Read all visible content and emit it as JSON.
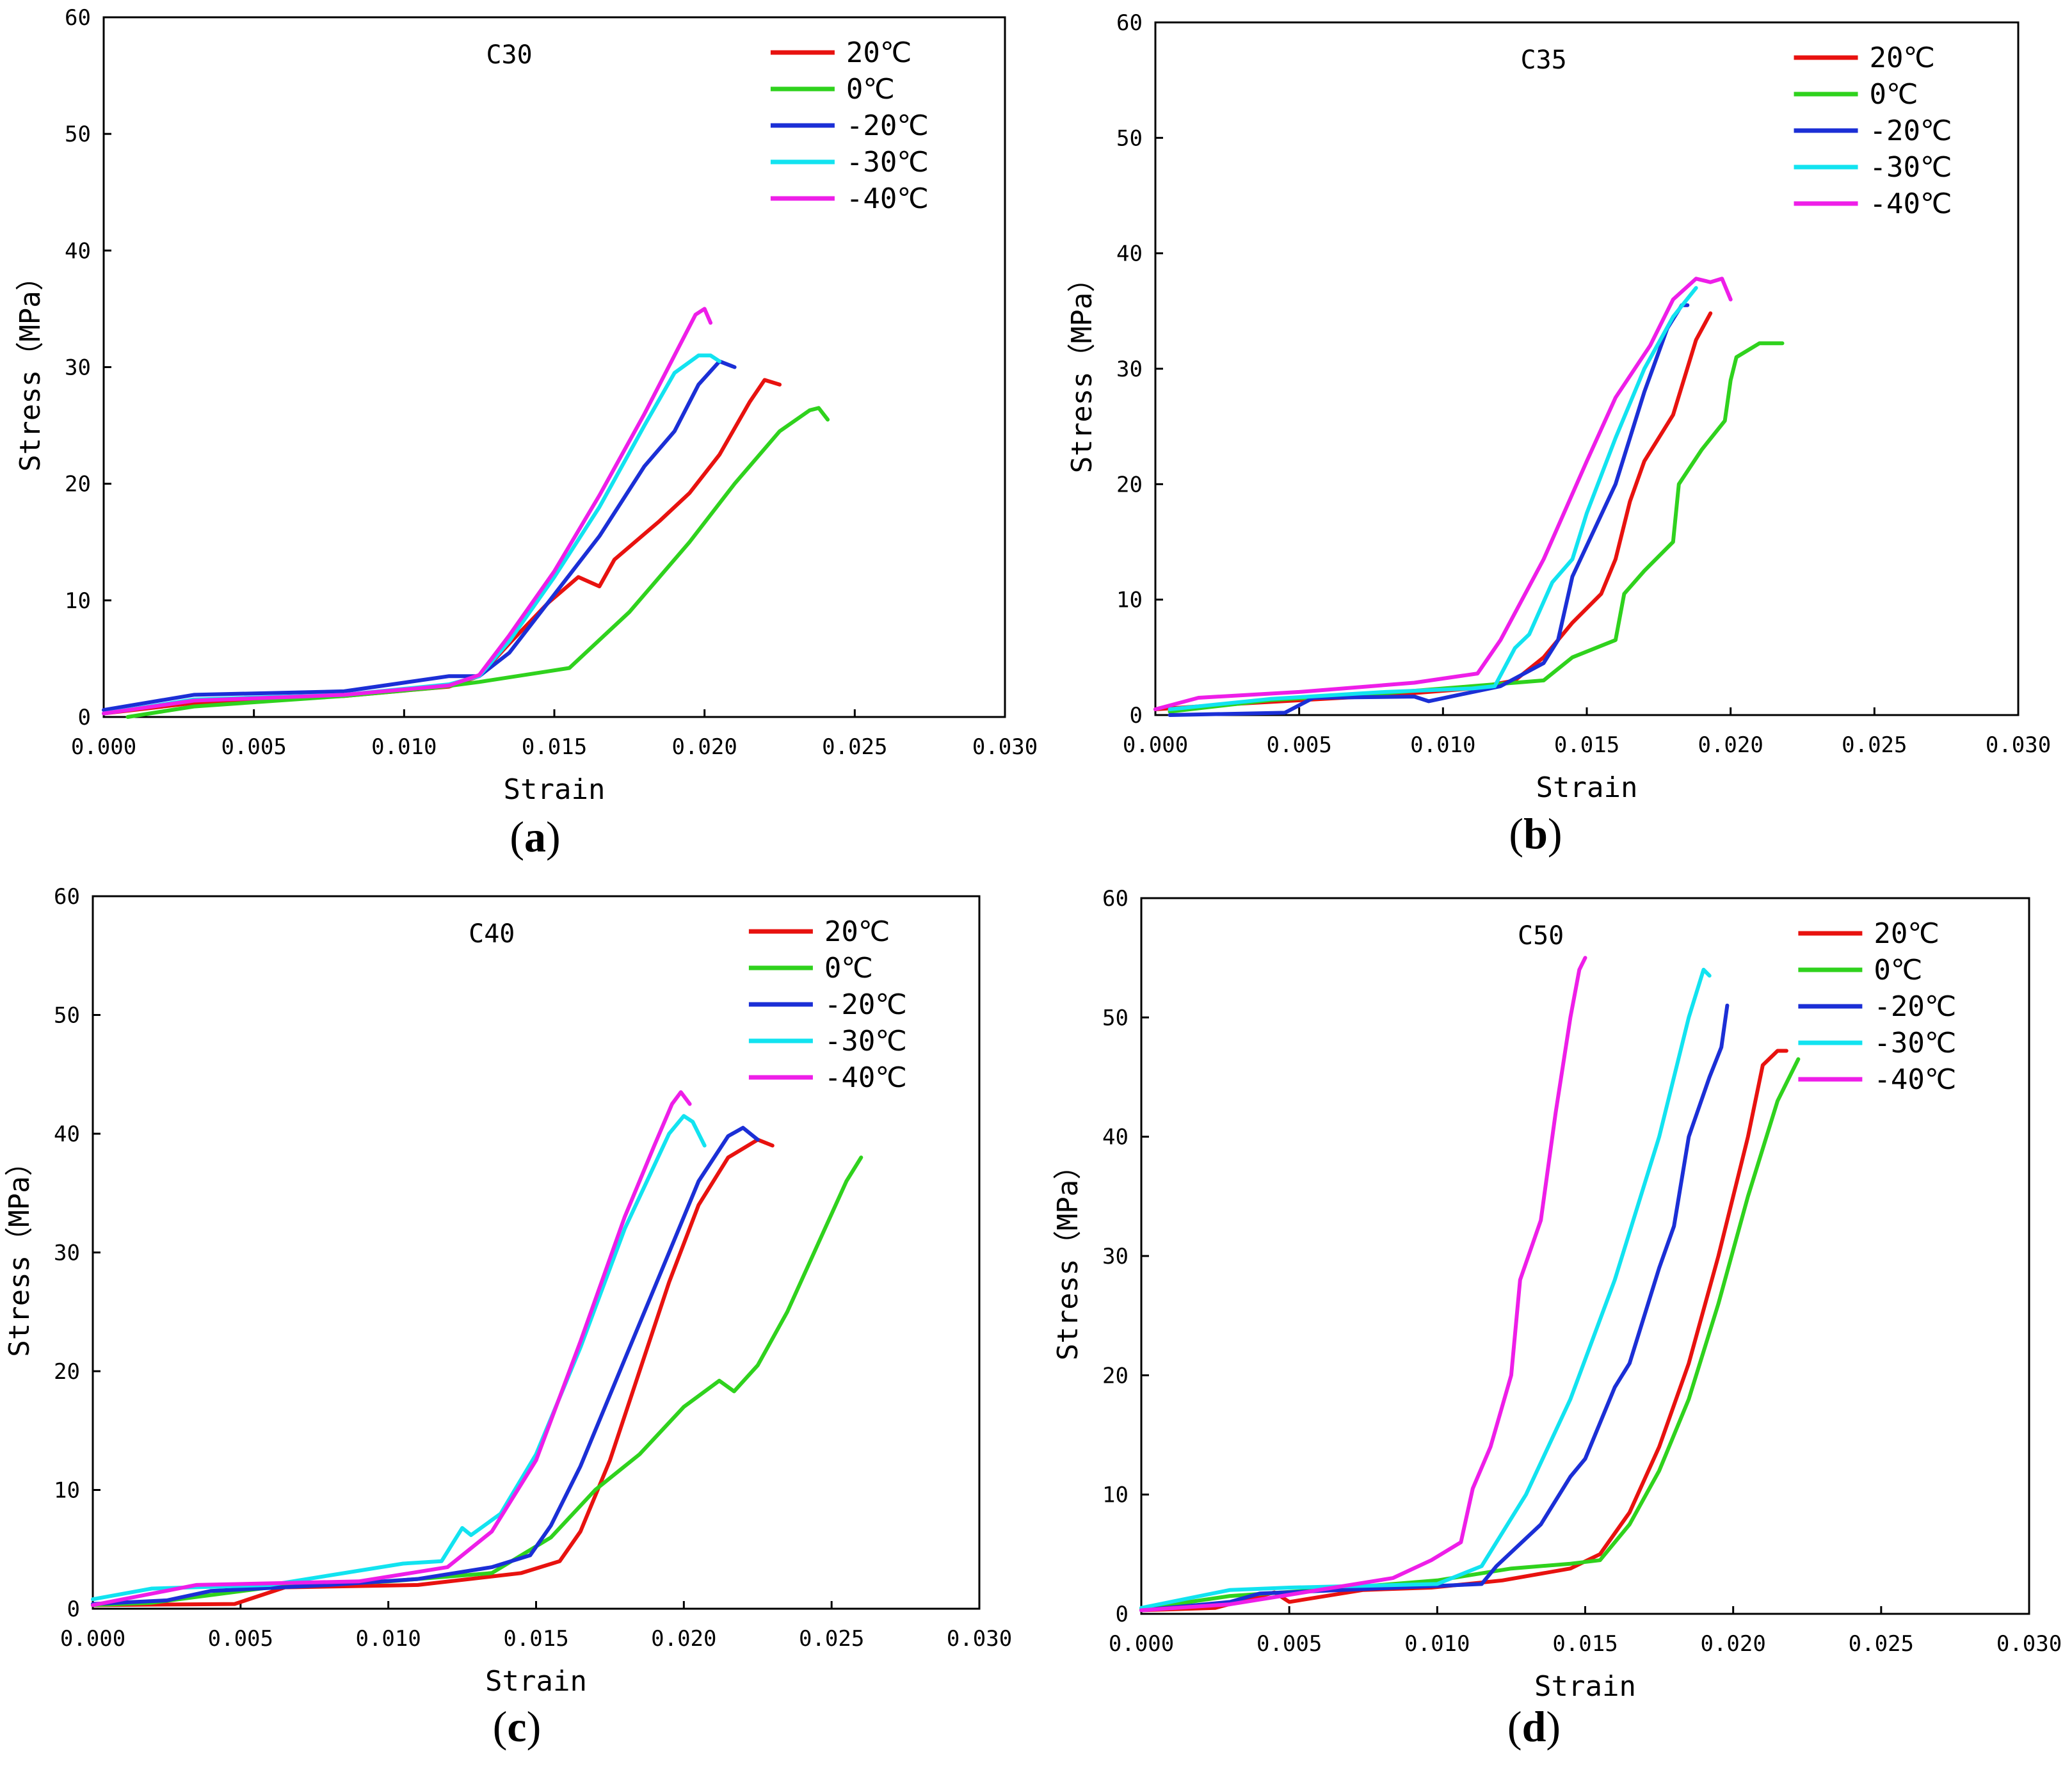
{
  "figure": {
    "colors": {
      "t20": "#e8120f",
      "t0": "#2fd21d",
      "tm20": "#1b2fd6",
      "tm30": "#12e3f0",
      "tm40": "#ee1ee8"
    }
  },
  "chart_data": [
    {
      "type": "line",
      "panel": "a",
      "caption_letter": "a",
      "title": "C30",
      "xlabel": "Strain",
      "ylabel": "Stress（MPa）",
      "xlim": [
        0,
        0.03
      ],
      "ylim": [
        0,
        60
      ],
      "xticks": [
        "0.000",
        "0.005",
        "0.010",
        "0.015",
        "0.020",
        "0.025",
        "0.030"
      ],
      "yticks": [
        "0",
        "10",
        "20",
        "30",
        "40",
        "50",
        "60"
      ],
      "legend_position": "top-right",
      "series": [
        {
          "name": "20℃",
          "color": "#e8120f",
          "x": [
            0,
            0.003,
            0.008,
            0.0115,
            0.0125,
            0.0135,
            0.0148,
            0.0158,
            0.0165,
            0.017,
            0.0185,
            0.0195,
            0.0205,
            0.0215,
            0.022,
            0.0225
          ],
          "y": [
            0.3,
            1.2,
            1.8,
            2.6,
            3.5,
            6.3,
            9.8,
            12.0,
            11.2,
            13.5,
            16.8,
            19.2,
            22.5,
            27.0,
            28.9,
            28.5
          ]
        },
        {
          "name": "0℃",
          "color": "#2fd21d",
          "x": [
            0.0008,
            0.003,
            0.008,
            0.011,
            0.0125,
            0.0145,
            0.0155,
            0.0175,
            0.0195,
            0.021,
            0.0225,
            0.0235,
            0.0238,
            0.0241
          ],
          "y": [
            0.0,
            0.9,
            1.8,
            2.5,
            3.0,
            3.8,
            4.2,
            9.0,
            15.0,
            20.0,
            24.5,
            26.3,
            26.5,
            25.5
          ]
        },
        {
          "name": "-20℃",
          "color": "#1b2fd6",
          "x": [
            0,
            0.003,
            0.008,
            0.0115,
            0.0125,
            0.0135,
            0.015,
            0.0165,
            0.018,
            0.019,
            0.0198,
            0.0205,
            0.021
          ],
          "y": [
            0.6,
            1.9,
            2.2,
            3.5,
            3.5,
            5.5,
            10.5,
            15.5,
            21.5,
            24.5,
            28.5,
            30.5,
            30.0
          ]
        },
        {
          "name": "-30℃",
          "color": "#12e3f0",
          "x": [
            0,
            0.003,
            0.008,
            0.0115,
            0.0125,
            0.0135,
            0.015,
            0.0165,
            0.018,
            0.019,
            0.0198,
            0.0202,
            0.0205
          ],
          "y": [
            0.3,
            1.5,
            1.9,
            2.8,
            3.5,
            6.5,
            12.0,
            18.0,
            25.0,
            29.5,
            31.0,
            31.0,
            30.5
          ]
        },
        {
          "name": "-40℃",
          "color": "#ee1ee8",
          "x": [
            0,
            0.003,
            0.008,
            0.0115,
            0.0125,
            0.0135,
            0.015,
            0.0165,
            0.018,
            0.019,
            0.0197,
            0.02,
            0.0202
          ],
          "y": [
            0.3,
            1.4,
            1.9,
            2.7,
            3.6,
            7.0,
            12.5,
            19.0,
            26.0,
            31.0,
            34.5,
            35.0,
            33.8
          ]
        }
      ]
    },
    {
      "type": "line",
      "panel": "b",
      "caption_letter": "b",
      "title": "C35",
      "xlabel": "Strain",
      "ylabel": "Stress（MPa）",
      "xlim": [
        0,
        0.03
      ],
      "ylim": [
        0,
        60
      ],
      "xticks": [
        "0.000",
        "0.005",
        "0.010",
        "0.015",
        "0.020",
        "0.025",
        "0.030"
      ],
      "yticks": [
        "0",
        "10",
        "20",
        "30",
        "40",
        "50",
        "60"
      ],
      "legend_position": "top-right",
      "series": [
        {
          "name": "20℃",
          "color": "#e8120f",
          "x": [
            0,
            0.003,
            0.008,
            0.011,
            0.0125,
            0.0135,
            0.0145,
            0.0155,
            0.016,
            0.0165,
            0.017,
            0.018,
            0.0188,
            0.0193
          ],
          "y": [
            0.5,
            1.0,
            1.7,
            2.3,
            3.0,
            5.0,
            8.0,
            10.5,
            13.5,
            18.5,
            22.0,
            26.0,
            32.5,
            34.8
          ]
        },
        {
          "name": "0℃",
          "color": "#2fd21d",
          "x": [
            0.0005,
            0.004,
            0.008,
            0.011,
            0.0135,
            0.0145,
            0.016,
            0.0163,
            0.017,
            0.018,
            0.0182,
            0.019,
            0.0198,
            0.02,
            0.0202,
            0.021,
            0.0218
          ],
          "y": [
            0.3,
            1.3,
            1.9,
            2.5,
            3.0,
            5.0,
            6.5,
            10.5,
            12.5,
            15.0,
            20.0,
            23.0,
            25.5,
            29.0,
            31.0,
            32.2,
            32.2
          ]
        },
        {
          "name": "-20℃",
          "color": "#1b2fd6",
          "x": [
            0.0005,
            0.0045,
            0.0055,
            0.009,
            0.0095,
            0.012,
            0.0135,
            0.014,
            0.0145,
            0.016,
            0.017,
            0.0178,
            0.0183,
            0.0185
          ],
          "y": [
            0.0,
            0.2,
            1.5,
            1.6,
            1.2,
            2.5,
            4.5,
            6.5,
            12.0,
            20.0,
            28.0,
            33.5,
            35.5,
            35.5
          ]
        },
        {
          "name": "-30℃",
          "color": "#12e3f0",
          "x": [
            0.0005,
            0.004,
            0.008,
            0.011,
            0.0118,
            0.0125,
            0.013,
            0.0138,
            0.0145,
            0.015,
            0.016,
            0.017,
            0.018,
            0.0188
          ],
          "y": [
            0.5,
            1.4,
            2.0,
            2.3,
            2.5,
            5.8,
            7.0,
            11.5,
            13.5,
            17.5,
            24.0,
            30.0,
            34.5,
            37.0
          ]
        },
        {
          "name": "-40℃",
          "color": "#ee1ee8",
          "x": [
            0,
            0.0015,
            0.005,
            0.009,
            0.0112,
            0.012,
            0.0135,
            0.015,
            0.016,
            0.0172,
            0.018,
            0.0188,
            0.0193,
            0.0197,
            0.02
          ],
          "y": [
            0.5,
            1.5,
            2.0,
            2.8,
            3.6,
            6.5,
            13.5,
            22.0,
            27.5,
            32.0,
            36.0,
            37.8,
            37.5,
            37.8,
            36.0
          ]
        }
      ]
    },
    {
      "type": "line",
      "panel": "c",
      "caption_letter": "c",
      "title": "C40",
      "xlabel": "Strain",
      "ylabel": "Stress（MPa）",
      "xlim": [
        0,
        0.03
      ],
      "ylim": [
        0,
        60
      ],
      "xticks": [
        "0.000",
        "0.005",
        "0.010",
        "0.015",
        "0.020",
        "0.025",
        "0.030"
      ],
      "yticks": [
        "0",
        "10",
        "20",
        "30",
        "40",
        "50",
        "60"
      ],
      "legend_position": "top-right",
      "series": [
        {
          "name": "20℃",
          "color": "#e8120f",
          "x": [
            0,
            0.0048,
            0.0065,
            0.011,
            0.0145,
            0.0158,
            0.0165,
            0.0175,
            0.0185,
            0.0195,
            0.0205,
            0.0215,
            0.0225,
            0.023
          ],
          "y": [
            0.3,
            0.4,
            1.8,
            2.0,
            3.0,
            4.0,
            6.5,
            12.5,
            20.0,
            27.5,
            34.0,
            38.0,
            39.5,
            39.0
          ]
        },
        {
          "name": "0℃",
          "color": "#2fd21d",
          "x": [
            0,
            0.002,
            0.006,
            0.01,
            0.0135,
            0.0155,
            0.017,
            0.0185,
            0.02,
            0.0212,
            0.0217,
            0.0225,
            0.0235,
            0.0245,
            0.0255,
            0.026
          ],
          "y": [
            0.3,
            0.5,
            1.8,
            2.3,
            3.0,
            6.0,
            10.0,
            13.0,
            17.0,
            19.2,
            18.3,
            20.5,
            25.0,
            30.5,
            36.0,
            38.0
          ]
        },
        {
          "name": "-20℃",
          "color": "#1b2fd6",
          "x": [
            0,
            0.0025,
            0.004,
            0.008,
            0.011,
            0.0135,
            0.0148,
            0.0155,
            0.0165,
            0.018,
            0.0195,
            0.0205,
            0.0215,
            0.022,
            0.0225
          ],
          "y": [
            0.4,
            0.7,
            1.5,
            2.0,
            2.5,
            3.5,
            4.5,
            7.0,
            12.0,
            21.0,
            30.0,
            36.0,
            39.8,
            40.5,
            39.5
          ]
        },
        {
          "name": "-30℃",
          "color": "#12e3f0",
          "x": [
            0,
            0.002,
            0.006,
            0.0105,
            0.0118,
            0.0125,
            0.0128,
            0.0138,
            0.015,
            0.0165,
            0.018,
            0.0195,
            0.02,
            0.0203,
            0.0207
          ],
          "y": [
            0.8,
            1.7,
            2.0,
            3.8,
            4.0,
            6.8,
            6.2,
            8.0,
            13.0,
            22.0,
            32.0,
            40.0,
            41.5,
            41.0,
            39.0
          ]
        },
        {
          "name": "-40℃",
          "color": "#ee1ee8",
          "x": [
            0,
            0.0035,
            0.009,
            0.012,
            0.0135,
            0.015,
            0.0165,
            0.018,
            0.019,
            0.0196,
            0.0199,
            0.0202
          ],
          "y": [
            0.3,
            2.0,
            2.3,
            3.5,
            6.5,
            12.5,
            22.5,
            33.0,
            39.0,
            42.5,
            43.5,
            42.5
          ]
        }
      ]
    },
    {
      "type": "line",
      "panel": "d",
      "caption_letter": "d",
      "title": "C50",
      "xlabel": "Strain",
      "ylabel": "Stress（MPa）",
      "xlim": [
        0,
        0.03
      ],
      "ylim": [
        0,
        60
      ],
      "xticks": [
        "0.000",
        "0.005",
        "0.010",
        "0.015",
        "0.020",
        "0.025",
        "0.030"
      ],
      "yticks": [
        "0",
        "10",
        "20",
        "30",
        "40",
        "50",
        "60"
      ],
      "legend_position": "top-right",
      "series": [
        {
          "name": "20℃",
          "color": "#e8120f",
          "x": [
            0,
            0.0025,
            0.0045,
            0.005,
            0.0075,
            0.0098,
            0.0122,
            0.0145,
            0.0155,
            0.0165,
            0.0175,
            0.0185,
            0.0195,
            0.0205,
            0.021,
            0.0215,
            0.0218
          ],
          "y": [
            0.3,
            0.5,
            1.8,
            1.0,
            2.0,
            2.2,
            2.8,
            3.8,
            5.0,
            8.5,
            14.0,
            21.0,
            30.0,
            40.0,
            46.0,
            47.2,
            47.2
          ]
        },
        {
          "name": "0℃",
          "color": "#2fd21d",
          "x": [
            0,
            0.003,
            0.006,
            0.01,
            0.0125,
            0.0145,
            0.0155,
            0.0165,
            0.0175,
            0.0185,
            0.0195,
            0.0205,
            0.0215,
            0.0222
          ],
          "y": [
            0.4,
            1.5,
            2.0,
            2.8,
            3.8,
            4.2,
            4.5,
            7.5,
            12.0,
            18.0,
            26.0,
            35.0,
            43.0,
            46.5
          ]
        },
        {
          "name": "-20℃",
          "color": "#1b2fd6",
          "x": [
            0,
            0.003,
            0.004,
            0.0115,
            0.012,
            0.0135,
            0.0145,
            0.015,
            0.016,
            0.0165,
            0.0175,
            0.018,
            0.0185,
            0.0192,
            0.0196,
            0.0198
          ],
          "y": [
            0.3,
            1.0,
            1.7,
            2.5,
            4.0,
            7.5,
            11.5,
            13.0,
            19.0,
            21.0,
            29.0,
            32.5,
            40.0,
            45.0,
            47.5,
            51.0
          ]
        },
        {
          "name": "-30℃",
          "color": "#12e3f0",
          "x": [
            0,
            0.003,
            0.005,
            0.01,
            0.0115,
            0.013,
            0.0145,
            0.016,
            0.0175,
            0.0185,
            0.019,
            0.0192
          ],
          "y": [
            0.5,
            2.0,
            2.2,
            2.5,
            4.0,
            10.0,
            18.0,
            28.0,
            40.0,
            50.0,
            54.0,
            53.5
          ]
        },
        {
          "name": "-40℃",
          "color": "#ee1ee8",
          "x": [
            0,
            0.003,
            0.0085,
            0.0098,
            0.0108,
            0.0112,
            0.0118,
            0.0125,
            0.0128,
            0.0135,
            0.014,
            0.0145,
            0.0148,
            0.015
          ],
          "y": [
            0.3,
            0.8,
            3.0,
            4.5,
            6.0,
            10.5,
            14.0,
            20.0,
            28.0,
            33.0,
            42.0,
            50.0,
            54.0,
            55.0
          ]
        }
      ]
    }
  ]
}
